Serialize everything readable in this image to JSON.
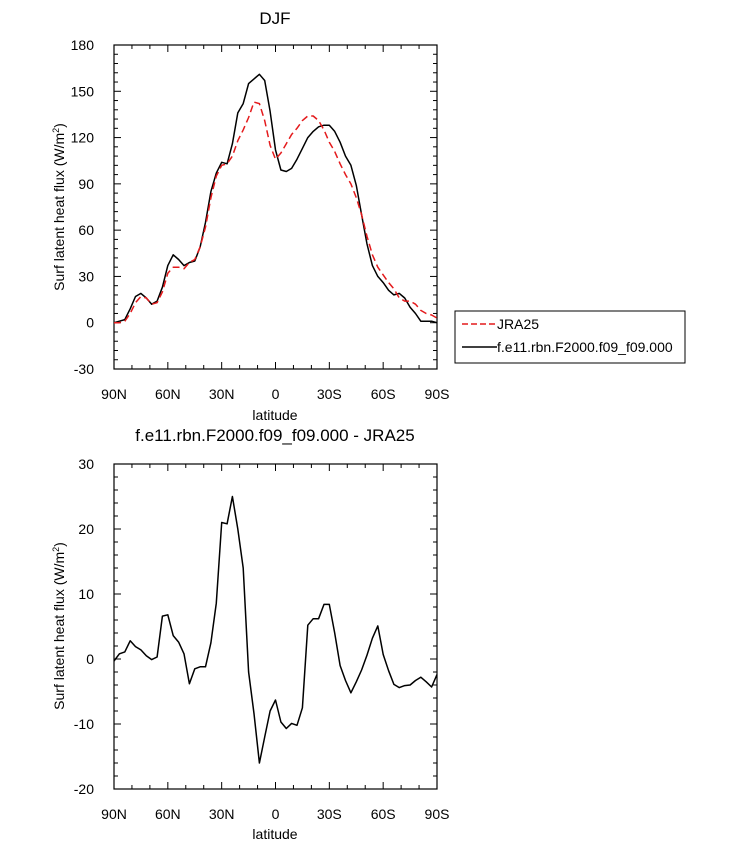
{
  "chart_data": [
    {
      "type": "line",
      "title": "DJF",
      "xlabel": "latitude",
      "ylabel": "Surf latent heat flux (W/m",
      "ylabel_sup": "2",
      "ylabel_close": ")",
      "xlim": [
        90,
        -90
      ],
      "ylim": [
        -30,
        180
      ],
      "xticks": [
        90,
        60,
        30,
        0,
        -30,
        -60,
        -90
      ],
      "xtick_labels": [
        "90N",
        "60N",
        "30N",
        "0",
        "30S",
        "60S",
        "90S"
      ],
      "yticks": [
        -30,
        0,
        30,
        60,
        90,
        120,
        150,
        180
      ],
      "ytick_labels": [
        "-30",
        "0",
        "30",
        "60",
        "90",
        "120",
        "150",
        "180"
      ],
      "legend": {
        "placement": "right",
        "entries": [
          {
            "label": "JRA25",
            "color": "#e41a1c",
            "style": "dashed"
          },
          {
            "label": "f.e11.rbn.F2000.f09_f09.000",
            "color": "#000000",
            "style": "solid"
          }
        ]
      },
      "series": [
        {
          "name": "f.e11.rbn.F2000.f09_f09.000",
          "color": "#000000",
          "style": "solid",
          "x": [
            90,
            87,
            84,
            81,
            78,
            75,
            72,
            69,
            66,
            63,
            60,
            57,
            54,
            51,
            48,
            45,
            42,
            39,
            36,
            33,
            30,
            27,
            24,
            21,
            18,
            15,
            12,
            9,
            6,
            3,
            0,
            -3,
            -6,
            -9,
            -12,
            -15,
            -18,
            -21,
            -24,
            -27,
            -30,
            -33,
            -36,
            -39,
            -42,
            -45,
            -48,
            -51,
            -54,
            -57,
            -60,
            -63,
            -66,
            -69,
            -72,
            -75,
            -78,
            -81,
            -84,
            -87,
            -90
          ],
          "y": [
            0,
            1,
            2,
            9,
            17,
            19,
            16,
            12,
            14,
            23,
            37,
            44,
            41,
            37,
            39,
            40,
            49,
            65,
            85,
            97,
            104,
            103,
            116,
            136,
            142,
            155,
            158,
            161,
            157,
            137,
            112,
            99,
            98,
            100,
            106,
            113,
            120,
            124,
            127,
            128,
            128,
            124,
            117,
            108,
            102,
            89,
            70,
            51,
            37,
            30,
            26,
            21,
            18,
            19,
            16,
            10,
            6,
            1,
            1,
            1,
            0
          ]
        },
        {
          "name": "JRA25",
          "color": "#e41a1c",
          "style": "dashed",
          "x": [
            90,
            87,
            84,
            81,
            78,
            75,
            72,
            69,
            66,
            63,
            60,
            57,
            54,
            51,
            48,
            45,
            42,
            39,
            36,
            33,
            30,
            27,
            24,
            21,
            18,
            15,
            12,
            9,
            6,
            3,
            0,
            -3,
            -6,
            -9,
            -12,
            -15,
            -18,
            -21,
            -24,
            -27,
            -30,
            -33,
            -36,
            -39,
            -42,
            -45,
            -48,
            -51,
            -54,
            -57,
            -60,
            -63,
            -66,
            -69,
            -72,
            -75,
            -78,
            -81,
            -84,
            -87,
            -90
          ],
          "y": [
            0,
            0,
            1,
            6,
            13,
            17,
            16,
            12,
            13,
            20,
            32,
            36,
            36,
            35,
            39,
            41,
            49,
            62,
            81,
            95,
            102,
            103,
            108,
            118,
            125,
            133,
            143,
            142,
            131,
            115,
            106,
            110,
            116,
            122,
            126,
            131,
            134,
            134,
            131,
            125,
            117,
            111,
            103,
            96,
            90,
            81,
            70,
            56,
            44,
            36,
            31,
            26,
            22,
            16,
            14,
            14,
            12,
            8,
            6,
            5,
            3
          ]
        }
      ]
    },
    {
      "type": "line",
      "title": "f.e11.rbn.F2000.f09_f09.000 - JRA25",
      "xlabel": "latitude",
      "ylabel": "Surf latent heat flux (W/m",
      "ylabel_sup": "2",
      "ylabel_close": ")",
      "xlim": [
        90,
        -90
      ],
      "ylim": [
        -20,
        30
      ],
      "xticks": [
        90,
        60,
        30,
        0,
        -30,
        -60,
        -90
      ],
      "xtick_labels": [
        "90N",
        "60N",
        "30N",
        "0",
        "30S",
        "60S",
        "90S"
      ],
      "yticks": [
        -20,
        -10,
        0,
        10,
        20,
        30
      ],
      "ytick_labels": [
        "-20",
        "-10",
        "0",
        "10",
        "20",
        "30"
      ],
      "series": [
        {
          "name": "f.e11.rbn.F2000.f09_f09.000 - JRA25",
          "color": "#000000",
          "style": "solid",
          "x": [
            90,
            87,
            84,
            81,
            78,
            75,
            72,
            69,
            66,
            63,
            60,
            57,
            54,
            51,
            48,
            45,
            42,
            39,
            36,
            33,
            30,
            27,
            24,
            21,
            18,
            15,
            12,
            9,
            6,
            3,
            0,
            -3,
            -6,
            -9,
            -12,
            -15,
            -18,
            -21,
            -24,
            -27,
            -30,
            -33,
            -36,
            -39,
            -42,
            -45,
            -48,
            -51,
            -54,
            -57,
            -60,
            -63,
            -66,
            -69,
            -72,
            -75,
            -78,
            -81,
            -84,
            -87,
            -90
          ],
          "y": [
            -0.3,
            0.8,
            1.1,
            2.8,
            1.9,
            1.4,
            0.5,
            -0.1,
            0.3,
            6.6,
            6.8,
            3.6,
            2.6,
            0.8,
            -3.8,
            -1.5,
            -1.2,
            -1.2,
            2.5,
            8.6,
            21.0,
            20.8,
            25.0,
            20.0,
            14.0,
            -2.0,
            -8.4,
            -16.0,
            -12.0,
            -8.0,
            -6.3,
            -9.7,
            -10.7,
            -9.9,
            -10.2,
            -7.5,
            5.2,
            6.2,
            6.2,
            8.4,
            8.4,
            4.0,
            -1.0,
            -3.3,
            -5.2,
            -3.5,
            -1.7,
            0.6,
            3.2,
            5.1,
            0.7,
            -1.8,
            -3.9,
            -4.4,
            -4.1,
            -4.0,
            -3.3,
            -2.8,
            -3.5,
            -4.3,
            -2.4
          ]
        }
      ]
    }
  ]
}
